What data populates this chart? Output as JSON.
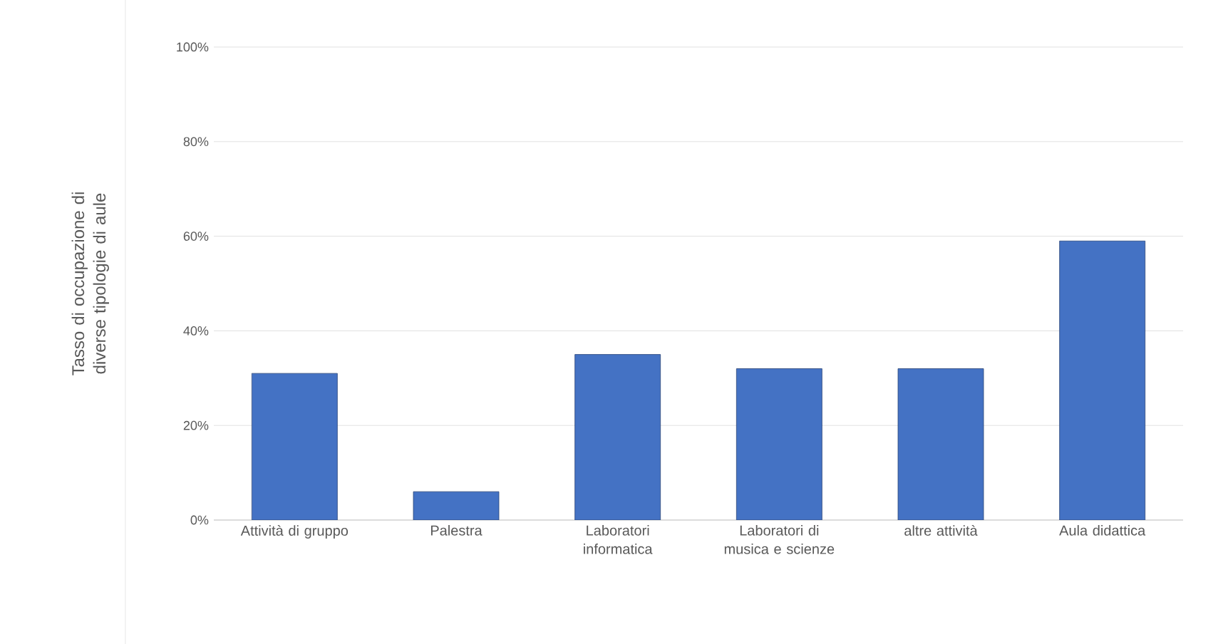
{
  "chart_data": {
    "type": "bar",
    "ylabel": "Tasso di occupazione di diverse tipologie di aule",
    "categories": [
      "Attività di gruppo",
      "Palestra",
      "Laboratori informatica",
      "Laboratori di musica e scienze",
      "altre attività",
      "Aula didattica"
    ],
    "values": [
      31,
      6,
      35,
      32,
      32,
      59
    ],
    "color": "#4472c4",
    "ylim": [
      0,
      100
    ],
    "yticks": [
      {
        "value": 0,
        "label": "0%"
      },
      {
        "value": 20,
        "label": "20%"
      },
      {
        "value": 40,
        "label": "40%"
      },
      {
        "value": 60,
        "label": "60%"
      },
      {
        "value": 80,
        "label": "80%"
      },
      {
        "value": 100,
        "label": "100%"
      }
    ],
    "grid": "y"
  }
}
